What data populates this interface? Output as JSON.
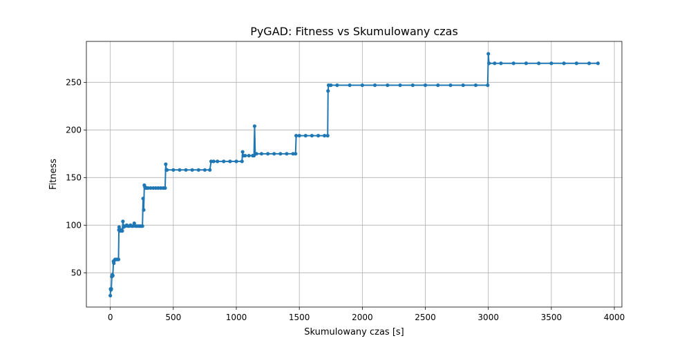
{
  "chart_data": {
    "type": "line",
    "title": "PyGAD: Fitness vs Skumulowany czas",
    "xlabel": "Skumulowany czas [s]",
    "ylabel": "Fitness",
    "xlim": [
      -190,
      4060
    ],
    "ylim": [
      14,
      293
    ],
    "xticks": [
      0,
      500,
      1000,
      1500,
      2000,
      2500,
      3000,
      3500,
      4000
    ],
    "yticks": [
      50,
      100,
      150,
      200,
      250
    ],
    "grid": true,
    "series_color": "#1f77b4",
    "series": [
      {
        "values": [
          [
            0,
            26
          ],
          [
            2,
            33
          ],
          [
            5,
            32
          ],
          [
            8,
            33
          ],
          [
            12,
            46
          ],
          [
            16,
            48
          ],
          [
            20,
            47
          ],
          [
            25,
            62
          ],
          [
            28,
            60
          ],
          [
            32,
            63
          ],
          [
            38,
            64
          ],
          [
            45,
            64
          ],
          [
            52,
            64
          ],
          [
            58,
            64
          ],
          [
            65,
            64
          ],
          [
            68,
            95
          ],
          [
            70,
            98
          ],
          [
            75,
            94
          ],
          [
            80,
            95
          ],
          [
            85,
            94
          ],
          [
            90,
            95
          ],
          [
            95,
            94
          ],
          [
            100,
            104
          ],
          [
            105,
            98
          ],
          [
            110,
            99
          ],
          [
            120,
            99
          ],
          [
            130,
            100
          ],
          [
            140,
            99
          ],
          [
            150,
            99
          ],
          [
            160,
            100
          ],
          [
            170,
            99
          ],
          [
            180,
            99
          ],
          [
            190,
            102
          ],
          [
            200,
            99
          ],
          [
            210,
            99
          ],
          [
            220,
            99
          ],
          [
            230,
            99
          ],
          [
            240,
            99
          ],
          [
            250,
            99
          ],
          [
            255,
            99
          ],
          [
            260,
            128
          ],
          [
            265,
            116
          ],
          [
            270,
            142
          ],
          [
            275,
            140
          ],
          [
            280,
            139
          ],
          [
            290,
            139
          ],
          [
            300,
            139
          ],
          [
            320,
            139
          ],
          [
            340,
            139
          ],
          [
            360,
            139
          ],
          [
            380,
            139
          ],
          [
            400,
            139
          ],
          [
            420,
            139
          ],
          [
            435,
            139
          ],
          [
            440,
            164
          ],
          [
            445,
            158
          ],
          [
            450,
            158
          ],
          [
            500,
            158
          ],
          [
            550,
            158
          ],
          [
            600,
            158
          ],
          [
            650,
            158
          ],
          [
            700,
            158
          ],
          [
            750,
            158
          ],
          [
            790,
            158
          ],
          [
            800,
            167
          ],
          [
            820,
            167
          ],
          [
            850,
            167
          ],
          [
            900,
            167
          ],
          [
            950,
            167
          ],
          [
            1000,
            167
          ],
          [
            1045,
            167
          ],
          [
            1050,
            177
          ],
          [
            1055,
            173
          ],
          [
            1070,
            173
          ],
          [
            1100,
            173
          ],
          [
            1130,
            173
          ],
          [
            1140,
            173
          ],
          [
            1145,
            204
          ],
          [
            1150,
            175
          ],
          [
            1160,
            175
          ],
          [
            1200,
            175
          ],
          [
            1250,
            175
          ],
          [
            1300,
            175
          ],
          [
            1350,
            175
          ],
          [
            1400,
            175
          ],
          [
            1450,
            175
          ],
          [
            1470,
            175
          ],
          [
            1475,
            194
          ],
          [
            1500,
            194
          ],
          [
            1550,
            194
          ],
          [
            1600,
            194
          ],
          [
            1650,
            194
          ],
          [
            1700,
            194
          ],
          [
            1725,
            194
          ],
          [
            1728,
            241
          ],
          [
            1732,
            247
          ],
          [
            1750,
            247
          ],
          [
            1800,
            247
          ],
          [
            1900,
            247
          ],
          [
            2000,
            247
          ],
          [
            2100,
            247
          ],
          [
            2200,
            247
          ],
          [
            2300,
            247
          ],
          [
            2400,
            247
          ],
          [
            2500,
            247
          ],
          [
            2600,
            247
          ],
          [
            2700,
            247
          ],
          [
            2800,
            247
          ],
          [
            2900,
            247
          ],
          [
            2995,
            247
          ],
          [
            3000,
            280
          ],
          [
            3005,
            270
          ],
          [
            3050,
            270
          ],
          [
            3100,
            270
          ],
          [
            3200,
            270
          ],
          [
            3300,
            270
          ],
          [
            3400,
            270
          ],
          [
            3500,
            270
          ],
          [
            3600,
            270
          ],
          [
            3700,
            270
          ],
          [
            3800,
            270
          ],
          [
            3870,
            270
          ]
        ]
      }
    ]
  }
}
